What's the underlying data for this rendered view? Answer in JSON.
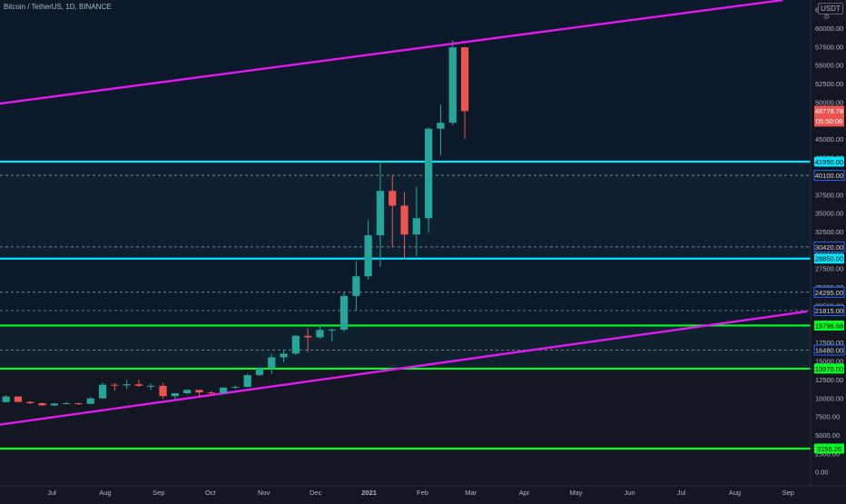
{
  "header": {
    "title": "Bitcoin / TetherUS, 1D, BINANCE",
    "currency": "USDT"
  },
  "chart_data": {
    "type": "candlestick",
    "title": "Bitcoin / TetherUS, 1D, BINANCE",
    "xlabel": "",
    "ylabel": "",
    "x_ticks": [
      "Jul",
      "Aug",
      "Sep",
      "Oct",
      "Nov",
      "Dec",
      "2021",
      "Feb",
      "Mar",
      "Apr",
      "May",
      "Jun",
      "Jul",
      "Aug",
      "Sep"
    ],
    "y_ticks": [
      "62500.00",
      "60000.00",
      "57500.00",
      "55000.00",
      "52500.00",
      "50000.00",
      "47500.00",
      "45000.00",
      "42500.00",
      "40000.00",
      "37500.00",
      "35000.00",
      "32500.00",
      "30000.00",
      "27500.00",
      "25000.00",
      "22500.00",
      "20000.00",
      "17500.00",
      "15000.00",
      "12500.00",
      "10000.00",
      "7500.00",
      "5000.00",
      "2500.00",
      "0.00"
    ],
    "ylim": [
      -400,
      63800
    ],
    "x_range": [
      "2020-06-01",
      "2021-09-14"
    ],
    "grid": false,
    "current_price": "48778.78",
    "countdown": "05:50:08",
    "horizontal_levels": [
      {
        "value": 41950,
        "label": "41950.00",
        "style": "solid",
        "color": "#00e5ff"
      },
      {
        "value": 40100,
        "label": "40100.00",
        "style": "dashed",
        "color": "#9598a1"
      },
      {
        "value": 30420,
        "label": "30420.00",
        "style": "dashed",
        "color": "#9598a1"
      },
      {
        "value": 28850,
        "label": "28850.00",
        "style": "solid",
        "color": "#00e5ff"
      },
      {
        "value": 24295,
        "label": "24295.00",
        "style": "dashed",
        "color": "#9598a1"
      },
      {
        "value": 21815,
        "label": "21815.00",
        "style": "dashed",
        "color": "#9598a1"
      },
      {
        "value": 19798.68,
        "label": "19798.68",
        "style": "solid",
        "color": "#00ff22"
      },
      {
        "value": 16480,
        "label": "16480.00",
        "style": "dashed",
        "color": "#9598a1"
      },
      {
        "value": 13970,
        "label": "13970.00",
        "style": "solid",
        "color": "#00ff22"
      },
      {
        "value": 3156.26,
        "label": "3156.26",
        "style": "solid",
        "color": "#00ff22"
      }
    ],
    "trendlines": [
      {
        "start": [
          "2020-06-01",
          49800
        ],
        "end": [
          "2021-08-29",
          63800
        ],
        "color": "#e01af0"
      },
      {
        "start": [
          "2020-06-01",
          6400
        ],
        "end": [
          "2021-09-12",
          21700
        ],
        "color": "#e01af0"
      }
    ],
    "candles": [
      [
        "2020-06-01",
        9450,
        10380,
        9390,
        10200
      ],
      [
        "2020-06-08",
        10200,
        10200,
        9400,
        9470
      ],
      [
        "2020-06-15",
        9470,
        9600,
        9200,
        9300
      ],
      [
        "2020-06-22",
        9300,
        9400,
        8950,
        9000
      ],
      [
        "2020-06-29",
        9000,
        9350,
        8900,
        9250
      ],
      [
        "2020-07-06",
        9250,
        9450,
        9150,
        9300
      ],
      [
        "2020-07-13",
        9300,
        9350,
        9050,
        9200
      ],
      [
        "2020-07-20",
        9200,
        10200,
        9150,
        9950
      ],
      [
        "2020-07-27",
        9950,
        12100,
        9900,
        11800
      ],
      [
        "2020-08-03",
        11800,
        12050,
        11000,
        11700
      ],
      [
        "2020-08-10",
        11700,
        12450,
        11200,
        11850
      ],
      [
        "2020-08-17",
        11850,
        12500,
        11500,
        11650
      ],
      [
        "2020-08-24",
        11650,
        11950,
        11100,
        11650
      ],
      [
        "2020-08-31",
        11650,
        12050,
        9900,
        10250
      ],
      [
        "2020-09-07",
        10250,
        10650,
        9850,
        10650
      ],
      [
        "2020-09-14",
        10650,
        11150,
        10450,
        11100
      ],
      [
        "2020-09-21",
        11100,
        11100,
        10150,
        10750
      ],
      [
        "2020-09-28",
        10750,
        10950,
        10400,
        10650
      ],
      [
        "2020-10-05",
        10650,
        11500,
        10550,
        11400
      ],
      [
        "2020-10-12",
        11400,
        11700,
        11200,
        11500
      ],
      [
        "2020-10-19",
        11500,
        13300,
        11450,
        13100
      ],
      [
        "2020-10-26",
        13100,
        14100,
        12950,
        14000
      ],
      [
        "2020-11-02",
        14000,
        15950,
        13250,
        15500
      ],
      [
        "2020-11-09",
        15500,
        16500,
        14800,
        16000
      ],
      [
        "2020-11-16",
        16000,
        18500,
        15800,
        18400
      ],
      [
        "2020-11-23",
        18400,
        19450,
        16200,
        18200
      ],
      [
        "2020-11-30",
        18200,
        19900,
        18000,
        19200
      ],
      [
        "2020-12-07",
        19200,
        19400,
        17650,
        19250
      ],
      [
        "2020-12-14",
        19250,
        24300,
        19000,
        23800
      ],
      [
        "2020-12-21",
        23800,
        28500,
        21800,
        26450
      ],
      [
        "2020-12-28",
        26450,
        34000,
        26000,
        32000
      ],
      [
        "2021-01-04",
        32000,
        41950,
        27700,
        38000
      ],
      [
        "2021-01-11",
        38000,
        40100,
        30400,
        36000
      ],
      [
        "2021-01-18",
        36000,
        37850,
        28800,
        32100
      ],
      [
        "2021-01-25",
        32100,
        38600,
        29200,
        34300
      ],
      [
        "2021-02-01",
        34300,
        46600,
        32300,
        46400
      ],
      [
        "2021-02-08",
        46400,
        49700,
        42800,
        47200
      ],
      [
        "2021-02-15",
        47200,
        58350,
        46900,
        57400
      ],
      [
        "2021-02-22",
        57400,
        57500,
        45000,
        48780
      ]
    ]
  }
}
